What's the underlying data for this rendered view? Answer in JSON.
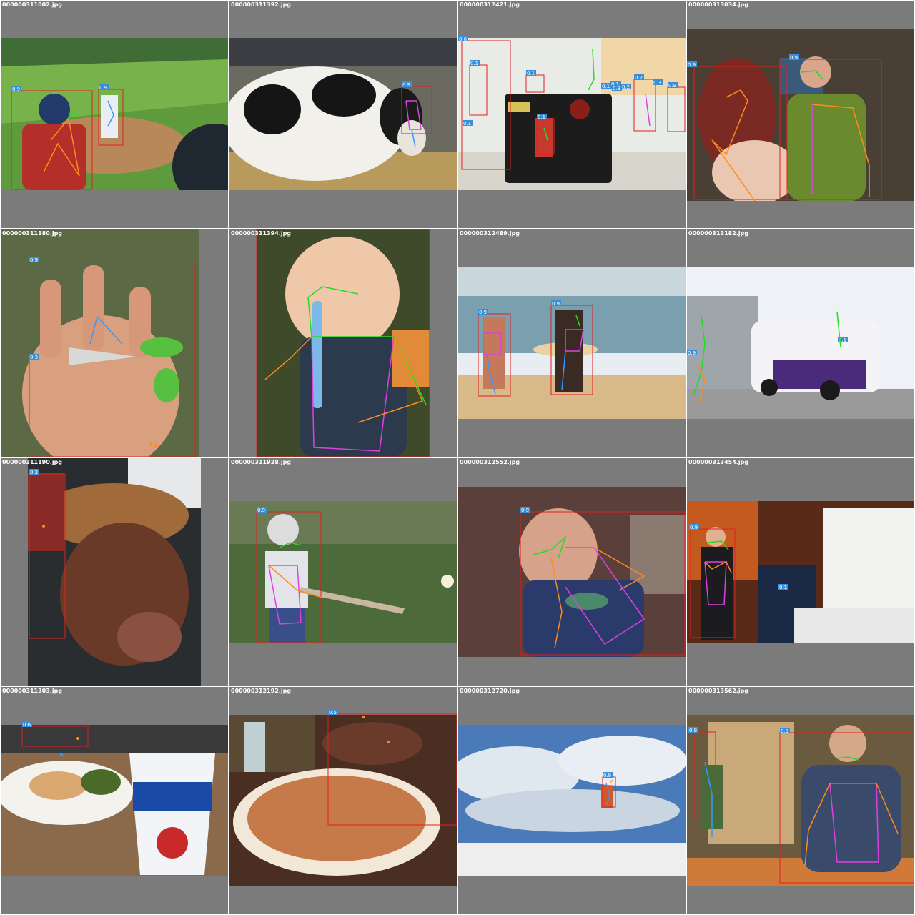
{
  "grid": {
    "background": "#7b7b7b",
    "box_color": "#e02020",
    "score_bg": "#3a8fd8",
    "keypoint_colors": {
      "head": "#22dd22",
      "arm": "#ff8c1a",
      "torso": "#e040e0",
      "leg": "#3399ff"
    }
  },
  "cells": [
    {
      "filename": "000000311002.jpg",
      "scores": [
        "0.9",
        "0.9"
      ],
      "scene": "baseball-batter"
    },
    {
      "filename": "000000311392.jpg",
      "scores": [
        "0.9"
      ],
      "scene": "cow-barn"
    },
    {
      "filename": "000000312421.jpg",
      "scores": [
        "0.6",
        "0.1",
        "0.1",
        "0.1",
        "0.1",
        "0.1",
        "0.1",
        "0.3",
        "0.7",
        "0.3",
        "0.2",
        "0.9"
      ],
      "scene": "suitcase-street"
    },
    {
      "filename": "000000313034.jpg",
      "scores": [
        "0.9",
        "0.9"
      ],
      "scene": "couple-indoor"
    },
    {
      "filename": "000000311180.jpg",
      "scores": [
        "0.9",
        "0.3"
      ],
      "scene": "hand-scissors"
    },
    {
      "filename": "000000311394.jpg",
      "scores": [
        "1.0"
      ],
      "scene": "baby-toothbrush"
    },
    {
      "filename": "000000312489.jpg",
      "scores": [
        "0.9",
        "0.9"
      ],
      "scene": "beach-surfers"
    },
    {
      "filename": "000000313182.jpg",
      "scores": [
        "0.9",
        "0.1"
      ],
      "scene": "city-bus"
    },
    {
      "filename": "000000311190.jpg",
      "scores": [
        "0.2"
      ],
      "scene": "dog-hat"
    },
    {
      "filename": "000000311928.jpg",
      "scores": [
        "0.9"
      ],
      "scene": "kid-bat"
    },
    {
      "filename": "000000312552.jpg",
      "scores": [
        "0.9"
      ],
      "scene": "person-eating"
    },
    {
      "filename": "000000313454.jpg",
      "scores": [
        "0.9",
        "0.1"
      ],
      "scene": "speaker-podium"
    },
    {
      "filename": "000000311303.jpg",
      "scores": [
        "0.6"
      ],
      "scene": "food-pepsi"
    },
    {
      "filename": "000000312192.jpg",
      "scores": [
        "0.5"
      ],
      "scene": "pizza-table"
    },
    {
      "filename": "000000312720.jpg",
      "scores": [
        "0.9"
      ],
      "scene": "kite-sky"
    },
    {
      "filename": "000000313562.jpg",
      "scores": [
        "0.9",
        "0.9"
      ],
      "scene": "market-woman"
    }
  ]
}
